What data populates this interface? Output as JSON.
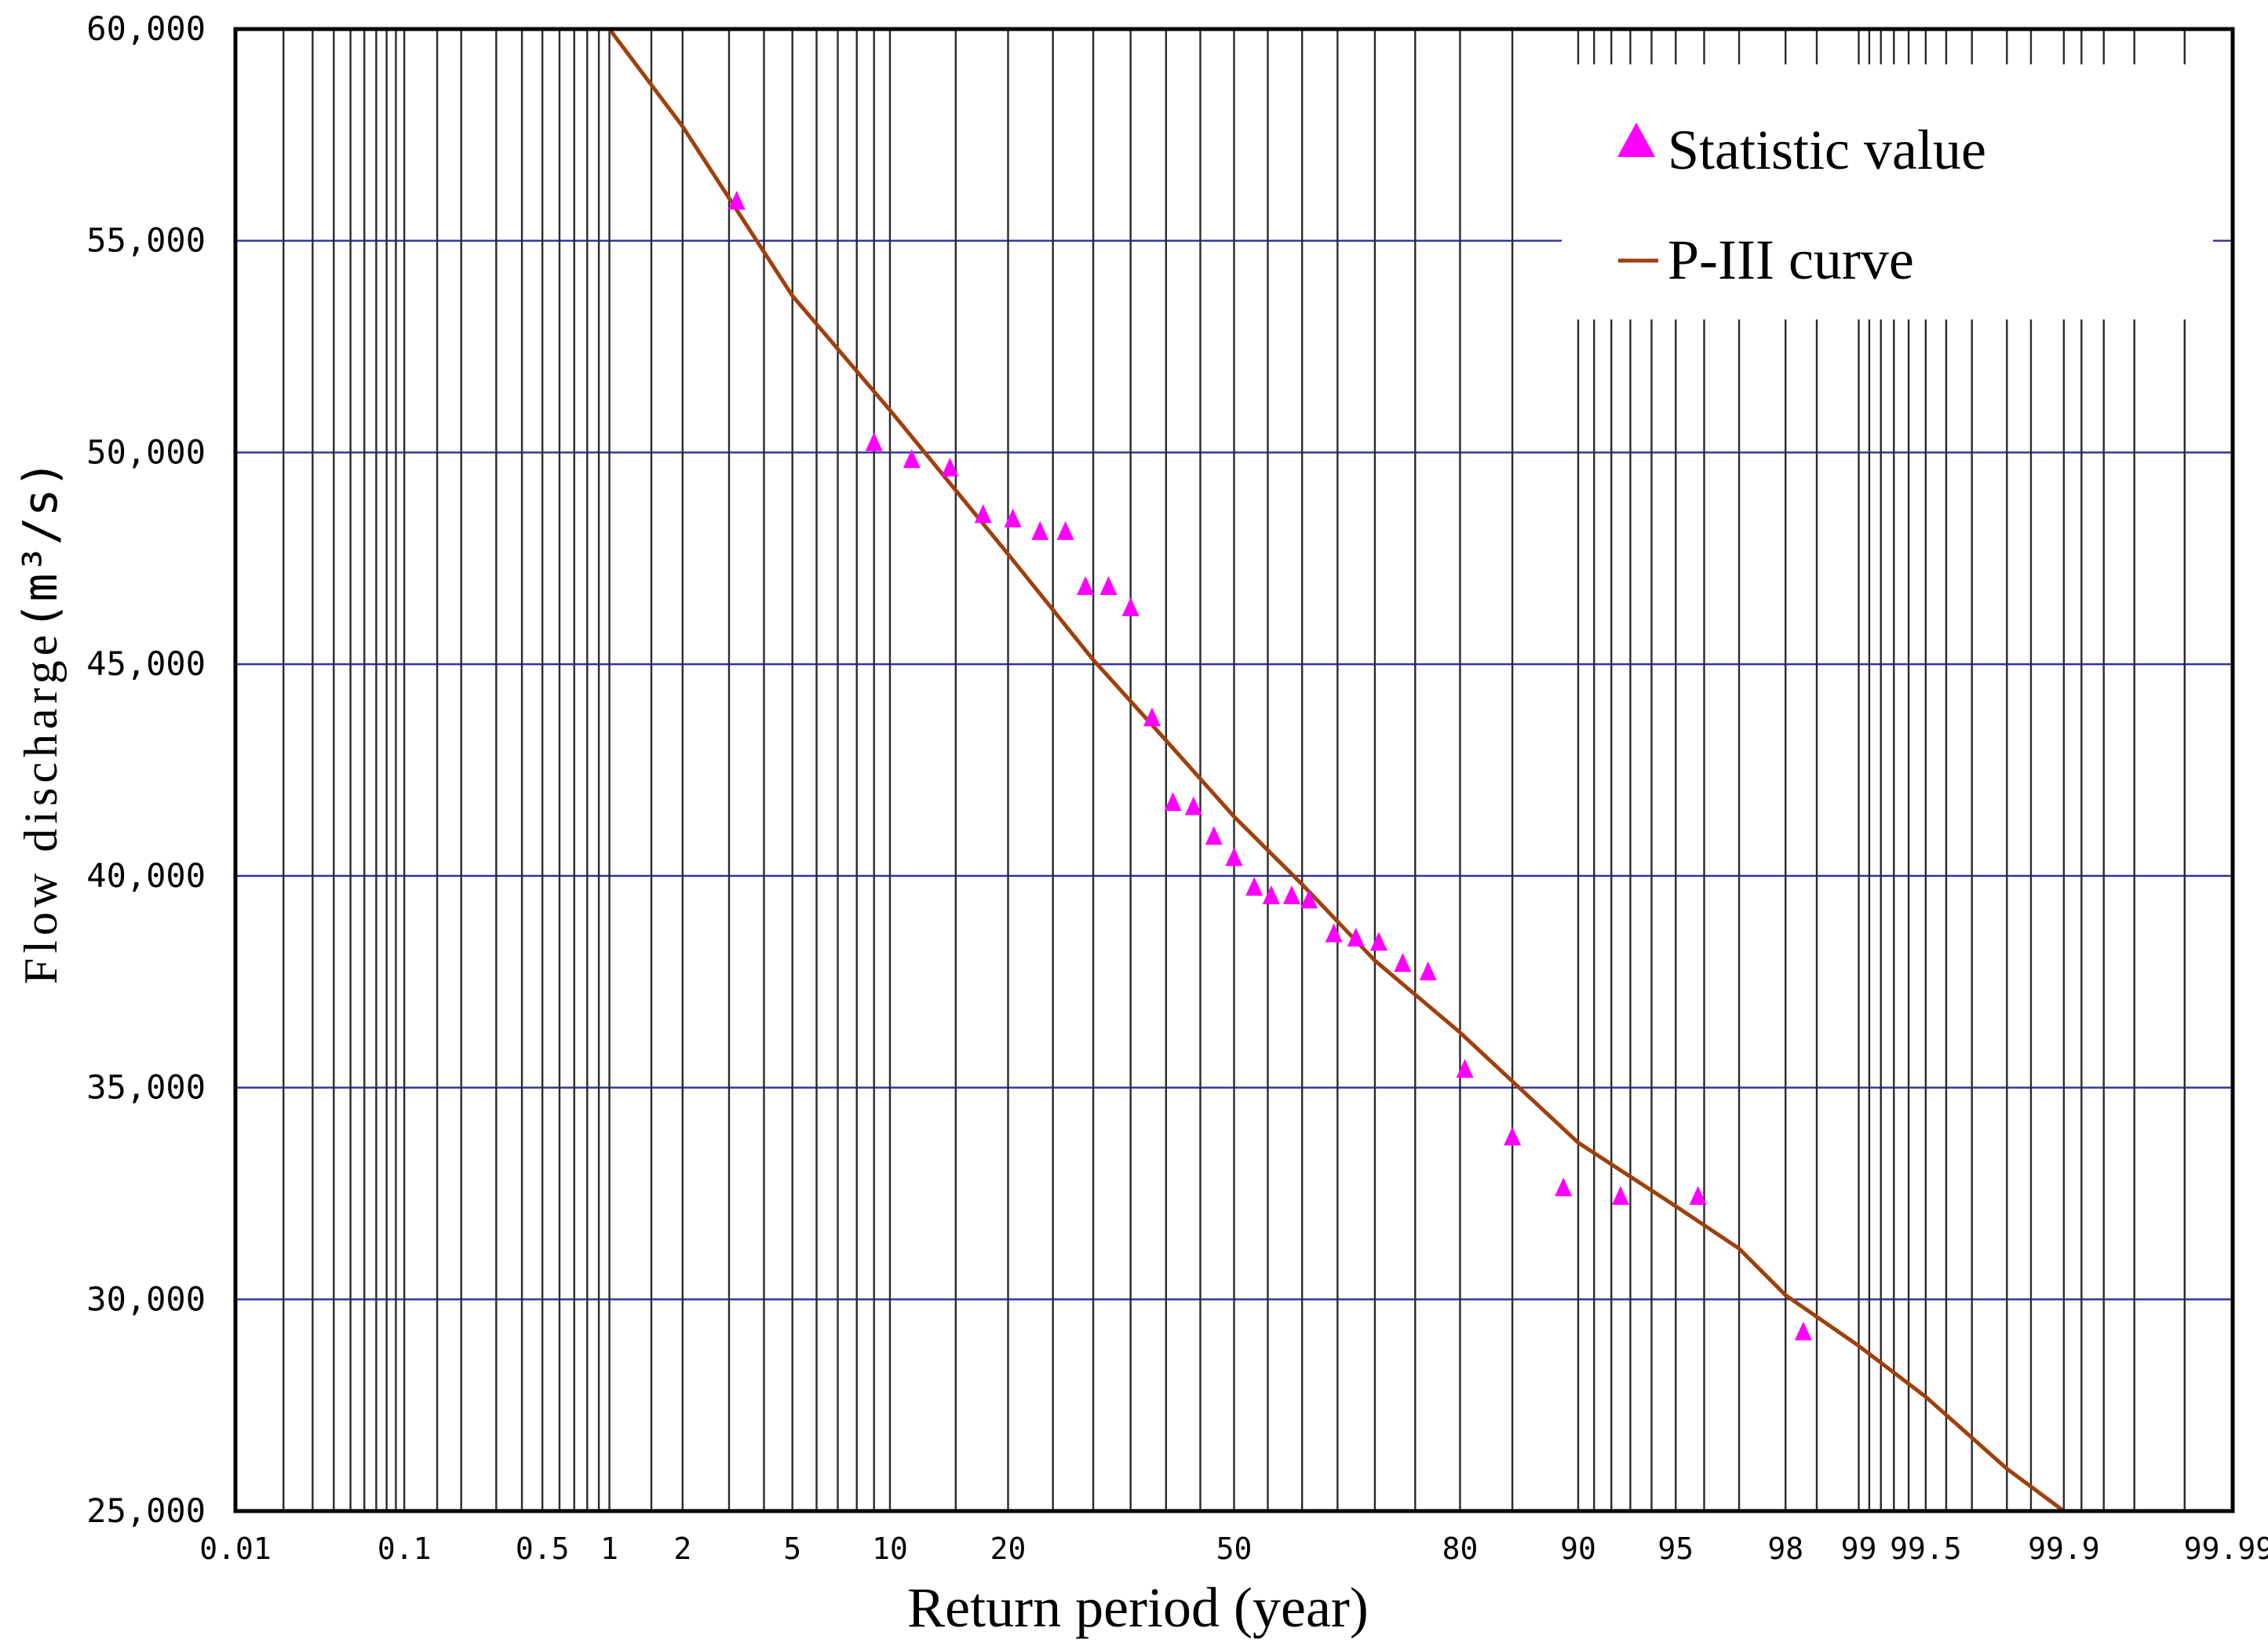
{
  "chart_data": {
    "type": "scatter",
    "title": "",
    "xlabel": "Return period (year)",
    "ylabel_main": "Flow discharge",
    "ylabel_unit": "(m³/s)",
    "x_scale": "normal-probability",
    "xlim": [
      0.01,
      99.99
    ],
    "ylim": [
      25000,
      60000
    ],
    "grid": true,
    "legend_position": "top-right",
    "x_ticks": [
      {
        "value": 0.01,
        "label": "0.01"
      },
      {
        "value": 0.1,
        "label": "0.1"
      },
      {
        "value": 0.5,
        "label": "0.5"
      },
      {
        "value": 1,
        "label": "1"
      },
      {
        "value": 2,
        "label": "2"
      },
      {
        "value": 5,
        "label": "5"
      },
      {
        "value": 10,
        "label": "10"
      },
      {
        "value": 20,
        "label": "20"
      },
      {
        "value": 50,
        "label": "50"
      },
      {
        "value": 80,
        "label": "80"
      },
      {
        "value": 90,
        "label": "90"
      },
      {
        "value": 95,
        "label": "95"
      },
      {
        "value": 98,
        "label": "98"
      },
      {
        "value": 99,
        "label": "99"
      },
      {
        "value": 99.5,
        "label": "99.5"
      },
      {
        "value": 99.9,
        "label": "99.9"
      },
      {
        "value": 99.99,
        "label": "99.99"
      }
    ],
    "x_gridlines": [
      0.02,
      0.03,
      0.04,
      0.05,
      0.06,
      0.07,
      0.08,
      0.09,
      0.1,
      0.15,
      0.2,
      0.3,
      0.4,
      0.5,
      0.6,
      0.7,
      0.8,
      0.9,
      1,
      1.5,
      2,
      3,
      4,
      5,
      6,
      7,
      8,
      9,
      10,
      15,
      20,
      25,
      30,
      35,
      40,
      45,
      50,
      55,
      60,
      65,
      70,
      75,
      80,
      85,
      90,
      91,
      92,
      93,
      94,
      95,
      96,
      97,
      98,
      98.5,
      99,
      99.1,
      99.2,
      99.3,
      99.4,
      99.5,
      99.6,
      99.7,
      99.8,
      99.85,
      99.9,
      99.92,
      99.94,
      99.96,
      99.98
    ],
    "y_ticks": [
      {
        "value": 25000,
        "label": "25,000"
      },
      {
        "value": 30000,
        "label": "30,000"
      },
      {
        "value": 35000,
        "label": "35,000"
      },
      {
        "value": 40000,
        "label": "40,000"
      },
      {
        "value": 45000,
        "label": "45,000"
      },
      {
        "value": 50000,
        "label": "50,000"
      },
      {
        "value": 55000,
        "label": "55,000"
      },
      {
        "value": 60000,
        "label": "60,000"
      }
    ],
    "series": [
      {
        "name": "Statistic value",
        "kind": "scatter",
        "marker": "triangle",
        "color": "#ff00ff",
        "points": [
          {
            "x": 3.2,
            "y": 55900
          },
          {
            "x": 9.0,
            "y": 50200
          },
          {
            "x": 11.5,
            "y": 49800
          },
          {
            "x": 14.5,
            "y": 49600
          },
          {
            "x": 17.5,
            "y": 48500
          },
          {
            "x": 20.5,
            "y": 48400
          },
          {
            "x": 23.5,
            "y": 48100
          },
          {
            "x": 26.5,
            "y": 48100
          },
          {
            "x": 29.0,
            "y": 46800
          },
          {
            "x": 32.0,
            "y": 46800
          },
          {
            "x": 35.0,
            "y": 46300
          },
          {
            "x": 38.0,
            "y": 43700
          },
          {
            "x": 41.0,
            "y": 41700
          },
          {
            "x": 44.0,
            "y": 41600
          },
          {
            "x": 47.0,
            "y": 40900
          },
          {
            "x": 50.0,
            "y": 40400
          },
          {
            "x": 53.0,
            "y": 39700
          },
          {
            "x": 55.5,
            "y": 39500
          },
          {
            "x": 58.5,
            "y": 39500
          },
          {
            "x": 61.0,
            "y": 39400
          },
          {
            "x": 64.5,
            "y": 38600
          },
          {
            "x": 67.5,
            "y": 38500
          },
          {
            "x": 70.5,
            "y": 38400
          },
          {
            "x": 73.5,
            "y": 37900
          },
          {
            "x": 76.5,
            "y": 37700
          },
          {
            "x": 80.5,
            "y": 35400
          },
          {
            "x": 85.0,
            "y": 33800
          },
          {
            "x": 89.0,
            "y": 32600
          },
          {
            "x": 92.5,
            "y": 32400
          },
          {
            "x": 95.8,
            "y": 32400
          },
          {
            "x": 98.3,
            "y": 29200
          }
        ]
      },
      {
        "name": "P-III curve",
        "kind": "line",
        "color": "#a0400c",
        "points": [
          {
            "x": 1,
            "y": 60000
          },
          {
            "x": 2,
            "y": 57700
          },
          {
            "x": 5,
            "y": 53700
          },
          {
            "x": 10,
            "y": 51000
          },
          {
            "x": 20,
            "y": 47600
          },
          {
            "x": 30,
            "y": 45100
          },
          {
            "x": 40,
            "y": 43200
          },
          {
            "x": 50,
            "y": 41400
          },
          {
            "x": 60,
            "y": 39800
          },
          {
            "x": 70,
            "y": 38000
          },
          {
            "x": 80,
            "y": 36300
          },
          {
            "x": 90,
            "y": 33700
          },
          {
            "x": 95,
            "y": 32200
          },
          {
            "x": 97,
            "y": 31200
          },
          {
            "x": 98,
            "y": 30100
          },
          {
            "x": 99,
            "y": 28900
          },
          {
            "x": 99.5,
            "y": 27700
          },
          {
            "x": 99.8,
            "y": 26000
          },
          {
            "x": 99.9,
            "y": 25000
          }
        ]
      }
    ]
  }
}
